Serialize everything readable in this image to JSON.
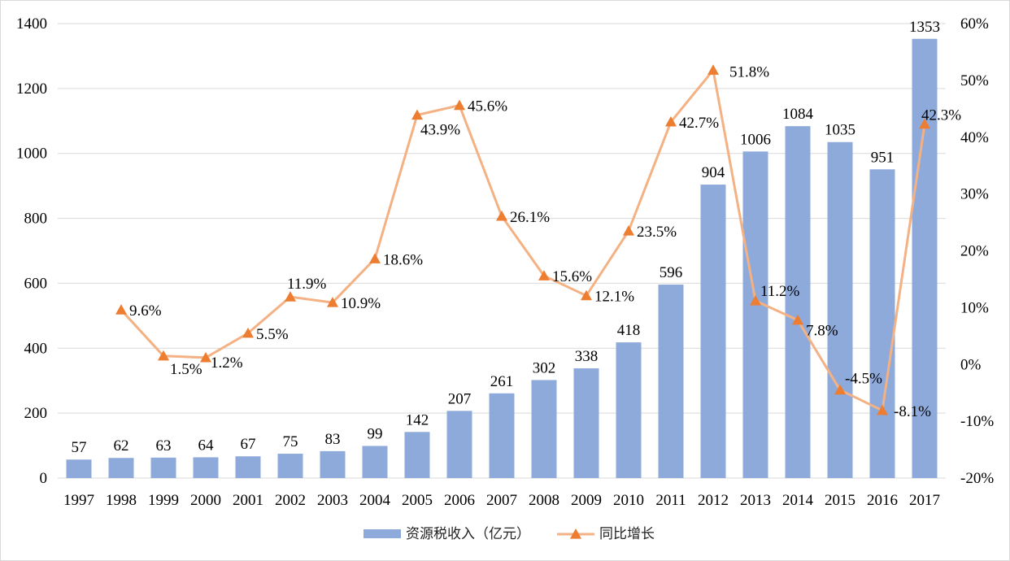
{
  "chart_data": {
    "type": "bar",
    "categories": [
      "1997",
      "1998",
      "1999",
      "2000",
      "2001",
      "2002",
      "2003",
      "2004",
      "2005",
      "2006",
      "2007",
      "2008",
      "2009",
      "2010",
      "2011",
      "2012",
      "2013",
      "2014",
      "2015",
      "2016",
      "2017"
    ],
    "series": [
      {
        "name": "资源税收入（亿元）",
        "type": "bar",
        "axis": "left",
        "color": "#8eaadb",
        "values": [
          57,
          62,
          63,
          64,
          67,
          75,
          83,
          99,
          142,
          207,
          261,
          302,
          338,
          418,
          596,
          904,
          1006,
          1084,
          1035,
          951,
          1353
        ],
        "labels": [
          "57",
          "62",
          "63",
          "64",
          "67",
          "75",
          "83",
          "99",
          "142",
          "207",
          "261",
          "302",
          "338",
          "418",
          "596",
          "904",
          "1006",
          "1084",
          "1035",
          "951",
          "1353"
        ]
      },
      {
        "name": "同比增长",
        "type": "line",
        "axis": "right",
        "color": "#f4b183",
        "marker_color": "#ed7d31",
        "marker": "triangle",
        "values": [
          null,
          9.6,
          1.5,
          1.2,
          5.5,
          11.9,
          10.9,
          18.6,
          43.9,
          45.6,
          26.1,
          15.6,
          12.1,
          23.5,
          42.7,
          51.8,
          11.2,
          7.8,
          -4.5,
          -8.1,
          42.3
        ],
        "labels": [
          "",
          "9.6%",
          "1.5%",
          "1.2%",
          "5.5%",
          "11.9%",
          "10.9%",
          "18.6%",
          "43.9%",
          "45.6%",
          "26.1%",
          "15.6%",
          "12.1%",
          "23.5%",
          "42.7%",
          "51.8%",
          "11.2%",
          "7.8%",
          "-4.5%",
          "-8.1%",
          "42.3%"
        ]
      }
    ],
    "y_left": {
      "range": [
        0,
        1400
      ],
      "ticks": [
        0,
        200,
        400,
        600,
        800,
        1000,
        1200,
        1400
      ],
      "tick_labels": [
        "0",
        "200",
        "400",
        "600",
        "800",
        "1000",
        "1200",
        "1400"
      ]
    },
    "y_right": {
      "range": [
        -20,
        60
      ],
      "ticks": [
        -20,
        -10,
        0,
        10,
        20,
        30,
        40,
        50,
        60
      ],
      "tick_labels": [
        "-20%",
        "-10%",
        "0%",
        "10%",
        "20%",
        "30%",
        "40%",
        "50%",
        "60%"
      ]
    },
    "grid": true,
    "legend": "bottom",
    "gridline_color": "#d9d9d9"
  }
}
